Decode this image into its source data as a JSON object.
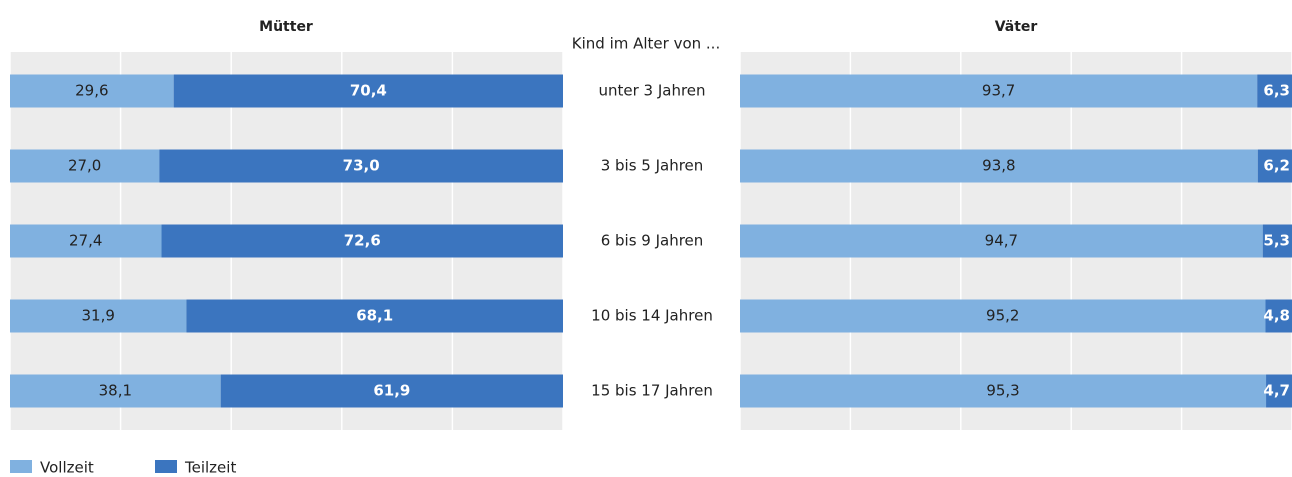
{
  "chart_data": [
    {
      "type": "bar",
      "title": "Mütter",
      "ylabel": "Kind im Alter von ...",
      "categories": [
        "unter 3 Jahren",
        "3 bis 5 Jahren",
        "6 bis 9 Jahren",
        "10 bis 14 Jahren",
        "15 bis 17 Jahren"
      ],
      "xlim": [
        0,
        100
      ],
      "xticks": [
        0,
        20,
        40,
        60,
        80,
        100
      ],
      "grid": true,
      "series": [
        {
          "name": "Vollzeit",
          "color": "#80b1e0",
          "values": [
            29.6,
            27.0,
            27.4,
            31.9,
            38.1
          ],
          "value_labels": [
            "29,6",
            "27,0",
            "27,4",
            "31,9",
            "38,1"
          ]
        },
        {
          "name": "Teilzeit",
          "color": "#3b75bf",
          "values": [
            70.4,
            73.0,
            72.6,
            68.1,
            61.9
          ],
          "value_labels": [
            "70,4",
            "73,0",
            "72,6",
            "68,1",
            "61,9"
          ]
        }
      ]
    },
    {
      "type": "bar",
      "title": "Väter",
      "xlim": [
        0,
        100
      ],
      "xticks": [
        0,
        20,
        40,
        60,
        80,
        100
      ],
      "grid": true,
      "series": [
        {
          "color": "#80b1e0",
          "values": [
            93.7,
            93.8,
            94.7,
            95.2,
            95.3
          ],
          "value_labels": [
            "93,7",
            "93,8",
            "94,7",
            "95,2",
            "95,3"
          ]
        },
        {
          "color": "#3b75bf",
          "values": [
            6.3,
            6.2,
            5.3,
            4.8,
            4.7
          ],
          "value_labels": [
            "6,3",
            "6,2",
            "5,3",
            "4,8",
            "4,7"
          ]
        }
      ]
    }
  ]
}
